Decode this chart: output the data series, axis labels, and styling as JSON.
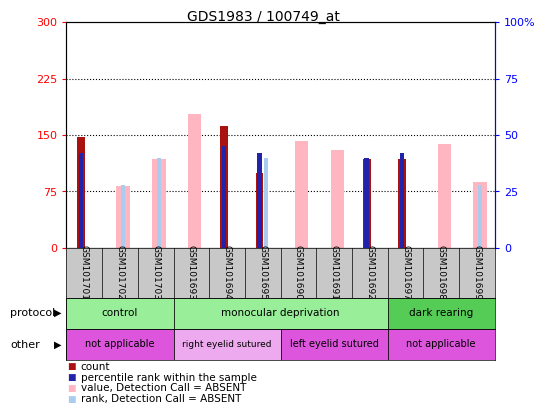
{
  "title": "GDS1983 / 100749_at",
  "samples": [
    "GSM101701",
    "GSM101702",
    "GSM101703",
    "GSM101693",
    "GSM101694",
    "GSM101695",
    "GSM101690",
    "GSM101691",
    "GSM101692",
    "GSM101697",
    "GSM101698",
    "GSM101699"
  ],
  "count_values": [
    148,
    0,
    0,
    0,
    162,
    100,
    0,
    0,
    118,
    118,
    0,
    0
  ],
  "count_present": [
    true,
    false,
    false,
    false,
    true,
    true,
    false,
    false,
    true,
    true,
    false,
    false
  ],
  "pink_values": [
    0,
    82,
    118,
    178,
    0,
    0,
    142,
    130,
    0,
    0,
    138,
    88
  ],
  "pink_present": [
    false,
    true,
    true,
    true,
    false,
    false,
    true,
    true,
    false,
    false,
    true,
    true
  ],
  "light_blue_values": [
    0,
    28,
    40,
    0,
    0,
    40,
    0,
    0,
    0,
    0,
    0,
    28
  ],
  "light_blue_present": [
    false,
    true,
    true,
    false,
    false,
    true,
    false,
    false,
    false,
    false,
    false,
    true
  ],
  "dark_blue_values": [
    42,
    0,
    0,
    0,
    45,
    42,
    0,
    0,
    40,
    42,
    0,
    0
  ],
  "dark_blue_present": [
    true,
    false,
    false,
    false,
    true,
    true,
    false,
    false,
    true,
    true,
    false,
    false
  ],
  "ylim_left": [
    0,
    300
  ],
  "ylim_right": [
    0,
    100
  ],
  "yticks_left": [
    0,
    75,
    150,
    225,
    300
  ],
  "yticks_right": [
    0,
    25,
    50,
    75,
    100
  ],
  "ytick_labels_left": [
    "0",
    "75",
    "150",
    "225",
    "300"
  ],
  "ytick_labels_right": [
    "0",
    "25",
    "50",
    "75",
    "100%"
  ],
  "protocol_groups": [
    {
      "label": "control",
      "start": 0,
      "end": 3,
      "color": "#99ee99"
    },
    {
      "label": "monocular deprivation",
      "start": 3,
      "end": 9,
      "color": "#99ee99"
    },
    {
      "label": "dark rearing",
      "start": 9,
      "end": 12,
      "color": "#55cc55"
    }
  ],
  "other_groups": [
    {
      "label": "not applicable",
      "start": 0,
      "end": 3,
      "color": "#dd55dd"
    },
    {
      "label": "right eyelid sutured",
      "start": 3,
      "end": 6,
      "color": "#eeaaee"
    },
    {
      "label": "left eyelid sutured",
      "start": 6,
      "end": 9,
      "color": "#dd55dd"
    },
    {
      "label": "not applicable",
      "start": 9,
      "end": 12,
      "color": "#dd55dd"
    }
  ],
  "count_color": "#aa1111",
  "pink_color": "#ffb6c1",
  "light_blue_color": "#aaccee",
  "dark_blue_color": "#2222aa",
  "grid_color": "#888888",
  "sample_bg": "#c8c8c8"
}
